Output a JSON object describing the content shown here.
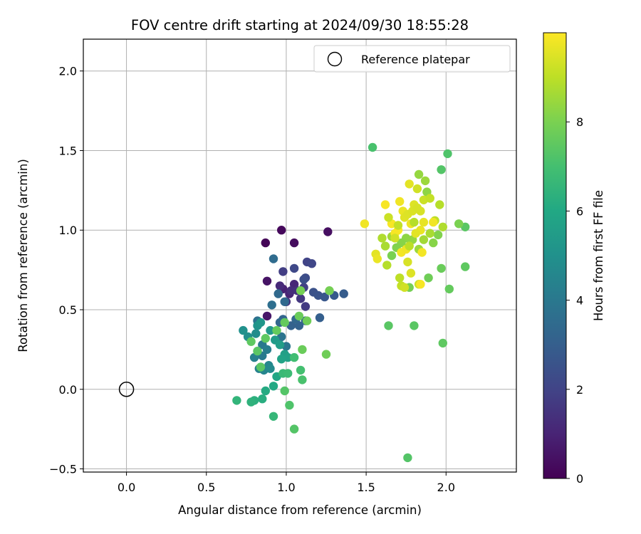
{
  "chart_data": {
    "type": "scatter",
    "title": "FOV centre drift starting at 2024/09/30 18:55:28",
    "xlabel": "Angular distance from reference (arcmin)",
    "ylabel": "Rotation from reference (arcmin)",
    "xlim": [
      -0.27,
      2.44
    ],
    "ylim": [
      -0.52,
      2.2
    ],
    "xticks": [
      0.0,
      0.5,
      1.0,
      1.5,
      2.0
    ],
    "xtick_labels": [
      "0.0",
      "0.5",
      "1.0",
      "1.5",
      "2.0"
    ],
    "yticks": [
      -0.5,
      0.0,
      0.5,
      1.0,
      1.5,
      2.0
    ],
    "ytick_labels": [
      "−0.5",
      "0.0",
      "0.5",
      "1.0",
      "1.5",
      "2.0"
    ],
    "grid": true,
    "legend": {
      "placement": "top-right",
      "entries": [
        {
          "label": "Reference platepar",
          "marker": "hollow-circle"
        }
      ]
    },
    "reference_point": {
      "x": 0.0,
      "y": 0.0,
      "label": "Reference platepar"
    },
    "colorbar": {
      "label": "Hours from first FF file",
      "colormap": "viridis",
      "range": [
        0,
        10
      ],
      "ticks": [
        0,
        2,
        4,
        6,
        8
      ],
      "tick_labels": [
        "0",
        "2",
        "4",
        "6",
        "8"
      ]
    },
    "point_columns": [
      "x",
      "y",
      "hours"
    ],
    "points": [
      [
        0.87,
        0.92,
        0.1
      ],
      [
        0.97,
        1.0,
        0.2
      ],
      [
        1.05,
        0.92,
        0.3
      ],
      [
        1.26,
        0.99,
        0.4
      ],
      [
        0.88,
        0.68,
        0.5
      ],
      [
        0.88,
        0.46,
        0.6
      ],
      [
        0.98,
        0.63,
        0.9
      ],
      [
        1.02,
        0.6,
        1.0
      ],
      [
        1.05,
        0.66,
        1.1
      ],
      [
        0.96,
        0.65,
        1.2
      ],
      [
        1.03,
        0.62,
        1.3
      ],
      [
        1.07,
        0.62,
        1.4
      ],
      [
        1.0,
        0.55,
        1.5
      ],
      [
        1.09,
        0.57,
        1.6
      ],
      [
        1.12,
        0.52,
        1.7
      ],
      [
        0.98,
        0.74,
        1.8
      ],
      [
        1.11,
        0.64,
        1.9
      ],
      [
        1.13,
        0.8,
        2.0
      ],
      [
        1.16,
        0.79,
        2.1
      ],
      [
        1.05,
        0.76,
        2.2
      ],
      [
        1.12,
        0.7,
        2.3
      ],
      [
        1.11,
        0.69,
        2.4
      ],
      [
        1.17,
        0.61,
        2.5
      ],
      [
        1.2,
        0.59,
        2.6
      ],
      [
        1.24,
        0.58,
        2.7
      ],
      [
        1.3,
        0.59,
        2.8
      ],
      [
        1.36,
        0.6,
        2.9
      ],
      [
        1.21,
        0.45,
        3.0
      ],
      [
        1.08,
        0.4,
        3.1
      ],
      [
        1.03,
        0.4,
        3.1
      ],
      [
        1.12,
        0.43,
        3.2
      ],
      [
        0.98,
        0.44,
        3.2
      ],
      [
        1.06,
        0.44,
        3.3
      ],
      [
        0.96,
        0.42,
        3.3
      ],
      [
        0.95,
        0.6,
        3.4
      ],
      [
        0.99,
        0.55,
        3.4
      ],
      [
        0.92,
        0.82,
        3.5
      ],
      [
        0.91,
        0.53,
        3.6
      ],
      [
        0.82,
        0.43,
        3.7
      ],
      [
        0.97,
        0.33,
        3.8
      ],
      [
        1.0,
        0.27,
        3.9
      ],
      [
        0.85,
        0.28,
        4.0
      ],
      [
        0.85,
        0.21,
        4.1
      ],
      [
        0.88,
        0.25,
        4.2
      ],
      [
        0.8,
        0.2,
        4.3
      ],
      [
        0.83,
        0.13,
        4.4
      ],
      [
        0.86,
        0.12,
        4.5
      ],
      [
        0.89,
        0.15,
        4.6
      ],
      [
        0.9,
        0.13,
        4.7
      ],
      [
        0.81,
        0.35,
        4.8
      ],
      [
        0.76,
        0.33,
        4.9
      ],
      [
        0.73,
        0.37,
        5.0
      ],
      [
        0.82,
        0.4,
        5.1
      ],
      [
        0.84,
        0.42,
        5.2
      ],
      [
        0.9,
        0.37,
        5.3
      ],
      [
        0.93,
        0.31,
        5.4
      ],
      [
        0.96,
        0.28,
        5.5
      ],
      [
        0.99,
        0.22,
        5.6
      ],
      [
        1.01,
        0.2,
        5.7
      ],
      [
        0.97,
        0.19,
        5.8
      ],
      [
        0.94,
        0.08,
        5.9
      ],
      [
        0.92,
        0.02,
        6.0
      ],
      [
        0.87,
        -0.01,
        6.1
      ],
      [
        0.85,
        -0.06,
        6.2
      ],
      [
        0.8,
        -0.07,
        6.3
      ],
      [
        0.78,
        -0.08,
        6.4
      ],
      [
        0.69,
        -0.07,
        6.5
      ],
      [
        0.92,
        -0.17,
        6.6
      ],
      [
        0.98,
        0.1,
        6.7
      ],
      [
        1.01,
        0.1,
        6.8
      ],
      [
        1.05,
        0.2,
        6.9
      ],
      [
        1.09,
        0.12,
        7.0
      ],
      [
        1.1,
        0.06,
        7.1
      ],
      [
        1.02,
        -0.1,
        7.2
      ],
      [
        1.05,
        -0.25,
        7.3
      ],
      [
        0.99,
        -0.01,
        7.3
      ],
      [
        0.84,
        0.14,
        7.4
      ],
      [
        0.82,
        0.24,
        7.4
      ],
      [
        0.78,
        0.3,
        7.5
      ],
      [
        0.87,
        0.32,
        7.5
      ],
      [
        0.94,
        0.37,
        7.6
      ],
      [
        0.99,
        0.42,
        7.6
      ],
      [
        1.08,
        0.46,
        7.7
      ],
      [
        1.1,
        0.25,
        7.7
      ],
      [
        1.13,
        0.43,
        7.8
      ],
      [
        1.25,
        0.22,
        7.8
      ],
      [
        1.27,
        0.62,
        7.9
      ],
      [
        1.09,
        0.62,
        7.9
      ],
      [
        1.54,
        1.52,
        7.1
      ],
      [
        2.01,
        1.48,
        7.2
      ],
      [
        1.97,
        1.38,
        7.3
      ],
      [
        1.64,
        0.4,
        7.4
      ],
      [
        1.8,
        0.4,
        7.4
      ],
      [
        1.98,
        0.29,
        7.5
      ],
      [
        1.76,
        -0.43,
        7.3
      ],
      [
        2.12,
        1.02,
        7.4
      ],
      [
        2.12,
        0.77,
        7.5
      ],
      [
        2.02,
        0.63,
        7.6
      ],
      [
        1.97,
        0.76,
        7.7
      ],
      [
        1.89,
        0.7,
        7.8
      ],
      [
        1.77,
        0.64,
        7.9
      ],
      [
        2.08,
        1.04,
        8.0
      ],
      [
        1.95,
        0.97,
        8.1
      ],
      [
        1.92,
        0.92,
        8.2
      ],
      [
        1.88,
        1.24,
        8.3
      ],
      [
        1.83,
        1.35,
        8.4
      ],
      [
        1.87,
        1.31,
        8.5
      ],
      [
        1.66,
        0.96,
        8.6
      ],
      [
        1.62,
        0.9,
        8.7
      ],
      [
        1.6,
        0.95,
        8.8
      ],
      [
        1.63,
        0.78,
        8.9
      ],
      [
        1.71,
        0.7,
        9.0
      ],
      [
        1.72,
        0.65,
        9.1
      ],
      [
        1.83,
        0.66,
        9.2
      ],
      [
        1.74,
        0.64,
        9.3
      ],
      [
        1.76,
        0.8,
        9.4
      ],
      [
        1.78,
        0.73,
        9.5
      ],
      [
        1.56,
        0.85,
        9.6
      ],
      [
        1.57,
        0.82,
        9.7
      ],
      [
        1.49,
        1.04,
        9.8
      ],
      [
        1.62,
        1.16,
        9.9
      ],
      [
        1.66,
        1.04,
        9.9
      ],
      [
        1.71,
        1.18,
        9.8
      ],
      [
        1.73,
        1.12,
        9.7
      ],
      [
        1.77,
        1.29,
        9.6
      ],
      [
        1.8,
        1.16,
        9.5
      ],
      [
        1.84,
        1.12,
        9.4
      ],
      [
        1.82,
        1.26,
        9.3
      ],
      [
        1.86,
        1.19,
        9.2
      ],
      [
        1.9,
        1.2,
        9.1
      ],
      [
        1.93,
        1.06,
        9.0
      ],
      [
        1.96,
        1.16,
        8.9
      ],
      [
        1.98,
        1.02,
        8.8
      ],
      [
        1.9,
        0.98,
        8.7
      ],
      [
        1.86,
        0.94,
        8.6
      ],
      [
        1.83,
        0.88,
        8.5
      ],
      [
        1.79,
        0.94,
        8.4
      ],
      [
        1.75,
        0.95,
        8.3
      ],
      [
        1.72,
        0.92,
        8.2
      ],
      [
        1.69,
        0.89,
        8.1
      ],
      [
        1.66,
        0.84,
        8.0
      ],
      [
        1.7,
        1.0,
        9.95
      ],
      [
        1.68,
        0.98,
        9.9
      ],
      [
        1.72,
        0.86,
        9.85
      ],
      [
        1.75,
        0.88,
        9.8
      ],
      [
        1.78,
        1.04,
        9.75
      ],
      [
        1.84,
        1.0,
        9.7
      ],
      [
        1.86,
        1.05,
        9.65
      ],
      [
        1.81,
        0.98,
        9.6
      ],
      [
        1.74,
        1.08,
        9.55
      ],
      [
        1.76,
        1.1,
        9.5
      ],
      [
        1.79,
        1.12,
        9.45
      ],
      [
        1.82,
        1.14,
        9.4
      ],
      [
        1.84,
        0.66,
        9.9
      ],
      [
        1.85,
        0.86,
        9.85
      ],
      [
        1.92,
        1.05,
        9.8
      ],
      [
        1.68,
        0.95,
        9.3
      ],
      [
        1.64,
        1.08,
        9.2
      ],
      [
        1.7,
        1.03,
        9.1
      ],
      [
        1.77,
        0.9,
        9.0
      ],
      [
        1.8,
        1.05,
        8.9
      ]
    ]
  }
}
